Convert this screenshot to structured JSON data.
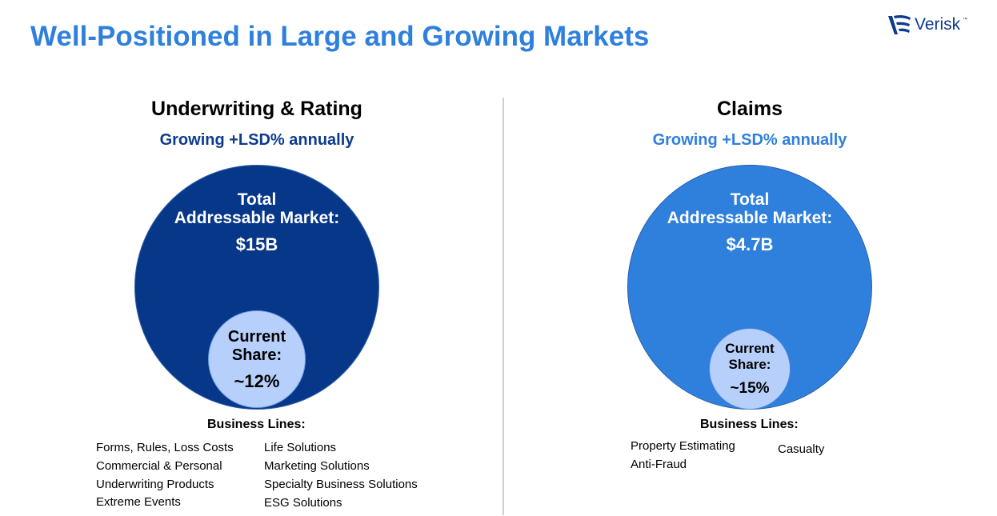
{
  "title": "Well-Positioned in Large and Growing Markets",
  "logo": {
    "text": "Verisk",
    "tm": "™"
  },
  "colors": {
    "title_blue": "#2f80dc",
    "dark_navy": "#073789",
    "bright_blue": "#2f7fdd",
    "light_blue": "#b7d0fb"
  },
  "underwriting": {
    "heading": "Underwriting & Rating",
    "subheading": "Growing +LSD% annually",
    "tam_line1": "Total",
    "tam_line2": "Addressable Market:",
    "tam_value": "$15B",
    "share_line1": "Current",
    "share_line2": "Share:",
    "share_value": "~12%",
    "business_lines_heading": "Business Lines:",
    "business_lines_left": [
      "Forms, Rules, Loss Costs",
      "Commercial & Personal",
      "Underwriting Products",
      "Extreme Events"
    ],
    "business_lines_right": [
      "Life Solutions",
      "Marketing Solutions",
      "Specialty Business Solutions",
      "ESG Solutions"
    ]
  },
  "claims": {
    "heading": "Claims",
    "subheading": "Growing +LSD% annually",
    "tam_line1": "Total",
    "tam_line2": "Addressable Market:",
    "tam_value": "$4.7B",
    "share_line1": "Current",
    "share_line2": "Share:",
    "share_value": "~15%",
    "business_lines_heading": "Business Lines:",
    "business_lines_left": [
      "Property Estimating",
      "Anti-Fraud"
    ],
    "business_lines_right": [
      "Casualty"
    ]
  }
}
